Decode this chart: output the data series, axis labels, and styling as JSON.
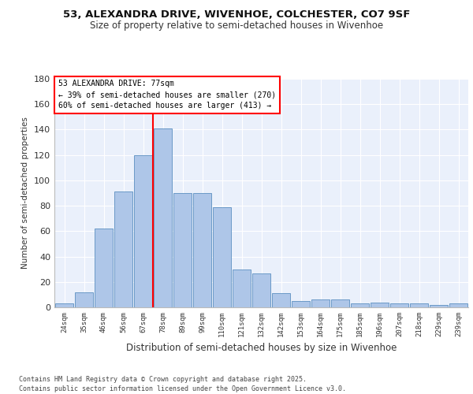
{
  "title1": "53, ALEXANDRA DRIVE, WIVENHOE, COLCHESTER, CO7 9SF",
  "title2": "Size of property relative to semi-detached houses in Wivenhoe",
  "categories": [
    "24sqm",
    "35sqm",
    "46sqm",
    "56sqm",
    "67sqm",
    "78sqm",
    "89sqm",
    "99sqm",
    "110sqm",
    "121sqm",
    "132sqm",
    "142sqm",
    "153sqm",
    "164sqm",
    "175sqm",
    "185sqm",
    "196sqm",
    "207sqm",
    "218sqm",
    "229sqm",
    "239sqm"
  ],
  "values": [
    3,
    12,
    62,
    91,
    120,
    141,
    90,
    90,
    79,
    30,
    27,
    11,
    5,
    6,
    6,
    3,
    4,
    3,
    3,
    2,
    3
  ],
  "bar_color": "#aec6e8",
  "bar_edge_color": "#5b8fc0",
  "vline_x_idx": 5,
  "vline_color": "red",
  "annotation_title": "53 ALEXANDRA DRIVE: 77sqm",
  "annotation_line1": "← 39% of semi-detached houses are smaller (270)",
  "annotation_line2": "60% of semi-detached houses are larger (413) →",
  "xlabel": "Distribution of semi-detached houses by size in Wivenhoe",
  "ylabel": "Number of semi-detached properties",
  "ylim": [
    0,
    180
  ],
  "yticks": [
    0,
    20,
    40,
    60,
    80,
    100,
    120,
    140,
    160,
    180
  ],
  "footer1": "Contains HM Land Registry data © Crown copyright and database right 2025.",
  "footer2": "Contains public sector information licensed under the Open Government Licence v3.0.",
  "bg_color": "#eaf0fb",
  "grid_color": "#ffffff",
  "fig_bg": "#ffffff"
}
